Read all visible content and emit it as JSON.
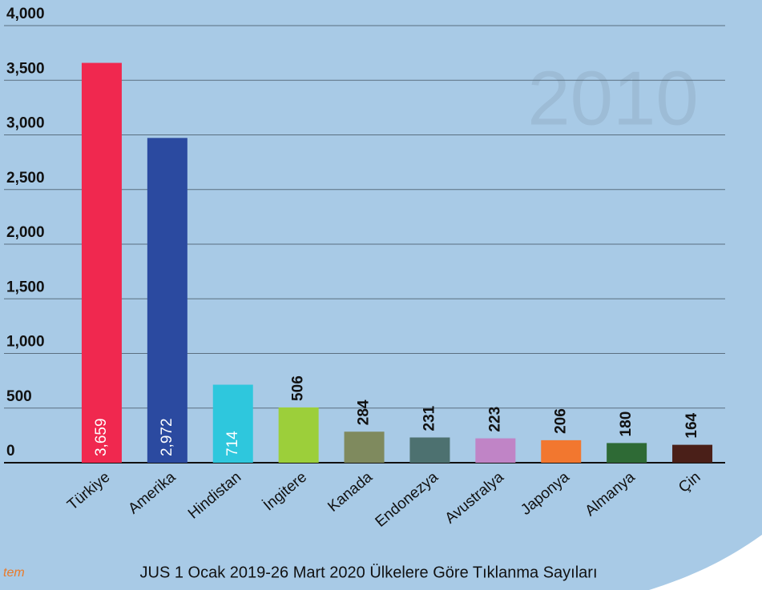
{
  "chart_data": {
    "type": "bar",
    "title": "JUS 1 Ocak 2019-26 Mart 2020 Ülkelere Göre Tıklanma Sayıları",
    "background_text": "2010",
    "corner_text": "tem",
    "categories": [
      "Türkiye",
      "Amerika",
      "Hindistan",
      "İngitere",
      "Kanada",
      "Endonezya",
      "Avustralya",
      "Japonya",
      "Almanya",
      "Çin"
    ],
    "values": [
      3659,
      2972,
      714,
      506,
      284,
      231,
      223,
      206,
      180,
      164
    ],
    "value_labels": [
      "3,659",
      "2,972",
      "714",
      "506",
      "284",
      "231",
      "223",
      "206",
      "180",
      "164"
    ],
    "colors": [
      "#f0284f",
      "#2b4aa0",
      "#2ec7dd",
      "#9ccf3a",
      "#7f8a5e",
      "#4d7170",
      "#c084c6",
      "#f2772f",
      "#2e6a35",
      "#4a1f18"
    ],
    "ylim": [
      0,
      4000
    ],
    "yticks": [
      0,
      500,
      {
        "value": 1000,
        "label": "1,000"
      },
      {
        "value": 1500,
        "label": "1,500"
      },
      {
        "value": 2000,
        "label": "2,000"
      },
      {
        "value": 2500,
        "label": "2,500"
      },
      {
        "value": 3000,
        "label": "3,000"
      },
      {
        "value": 3500,
        "label": "3,500"
      },
      {
        "value": 4000,
        "label": "4,000"
      }
    ],
    "grid": true
  }
}
